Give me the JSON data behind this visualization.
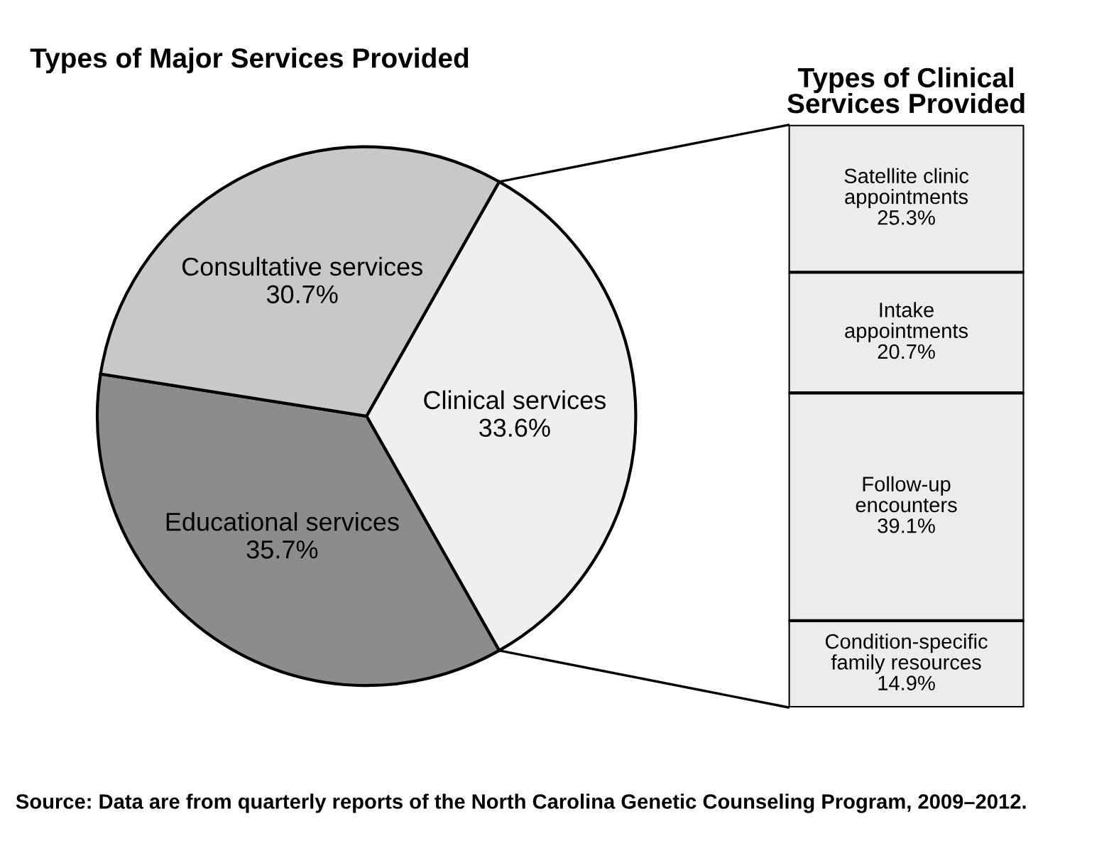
{
  "chart_data": [
    {
      "type": "pie",
      "title": "Types of Major Services Provided",
      "categories": [
        "Clinical services",
        "Educational services",
        "Consultative services"
      ],
      "values": [
        33.6,
        35.7,
        30.7
      ],
      "value_labels": [
        "33.6%",
        "35.7%",
        "30.7%"
      ],
      "colors": [
        "#efefef",
        "#8c8c8c",
        "#c8c8c8"
      ],
      "legend": false
    },
    {
      "type": "bar",
      "title": "Types of Clinical\nServices Provided",
      "stacked": true,
      "categories": [
        null
      ],
      "series": [
        {
          "name": "Condition-specific\nfamily resources",
          "color": "#ececec",
          "values": [
            14.9
          ],
          "value_labels": [
            "14.9%"
          ]
        },
        {
          "name": "Follow-up\nencounters",
          "color": "#ececec",
          "values": [
            39.1
          ],
          "value_labels": [
            "39.1%"
          ]
        },
        {
          "name": "Intake\nappointments",
          "color": "#ececec",
          "values": [
            20.7
          ],
          "value_labels": [
            "20.7%"
          ]
        },
        {
          "name": "Satellite clinic\nappointments",
          "color": "#ececec",
          "values": [
            25.3
          ],
          "value_labels": [
            "25.3%"
          ]
        }
      ],
      "legend": false,
      "annotations": [
        "Source: Data are from quarterly reports of the North Carolina Genetic Counseling Program, 2009–2012."
      ]
    }
  ]
}
